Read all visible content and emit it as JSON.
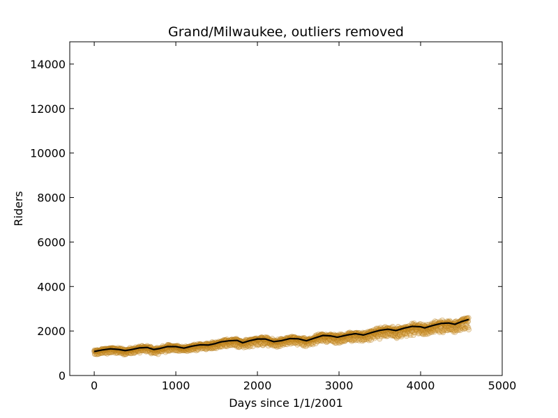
{
  "chart_data": {
    "type": "scatter",
    "title": "Grand/Milwaukee, outliers removed",
    "xlabel": "Days since 1/1/2001",
    "ylabel": "Riders",
    "xlim": [
      -300,
      5000
    ],
    "ylim": [
      0,
      15000
    ],
    "xticks": [
      0,
      1000,
      2000,
      3000,
      4000,
      5000
    ],
    "yticks": [
      0,
      2000,
      4000,
      6000,
      8000,
      10000,
      12000,
      14000
    ],
    "grid": false,
    "legend": "none",
    "series": [
      {
        "kind": "scatter-points",
        "color": "#e0a030",
        "edge_color": "#b07818",
        "x_range": [
          0,
          4590
        ],
        "note_density": "daily observations"
      },
      {
        "kind": "smoothed-trend-line",
        "color": "#000000",
        "points": [
          [
            0,
            1080
          ],
          [
            100,
            1150
          ],
          [
            200,
            1200
          ],
          [
            300,
            1170
          ],
          [
            380,
            1120
          ],
          [
            450,
            1160
          ],
          [
            550,
            1240
          ],
          [
            650,
            1260
          ],
          [
            730,
            1170
          ],
          [
            800,
            1210
          ],
          [
            900,
            1300
          ],
          [
            1000,
            1300
          ],
          [
            1100,
            1230
          ],
          [
            1200,
            1320
          ],
          [
            1300,
            1380
          ],
          [
            1400,
            1370
          ],
          [
            1480,
            1430
          ],
          [
            1550,
            1510
          ],
          [
            1650,
            1560
          ],
          [
            1750,
            1580
          ],
          [
            1820,
            1470
          ],
          [
            1900,
            1560
          ],
          [
            2000,
            1640
          ],
          [
            2100,
            1640
          ],
          [
            2200,
            1520
          ],
          [
            2300,
            1570
          ],
          [
            2400,
            1660
          ],
          [
            2500,
            1650
          ],
          [
            2600,
            1560
          ],
          [
            2700,
            1680
          ],
          [
            2800,
            1800
          ],
          [
            2900,
            1780
          ],
          [
            2980,
            1720
          ],
          [
            3100,
            1820
          ],
          [
            3200,
            1880
          ],
          [
            3300,
            1820
          ],
          [
            3400,
            1930
          ],
          [
            3500,
            2030
          ],
          [
            3600,
            2080
          ],
          [
            3700,
            2020
          ],
          [
            3800,
            2130
          ],
          [
            3900,
            2210
          ],
          [
            4000,
            2190
          ],
          [
            4050,
            2140
          ],
          [
            4150,
            2250
          ],
          [
            4250,
            2340
          ],
          [
            4350,
            2360
          ],
          [
            4420,
            2300
          ],
          [
            4500,
            2420
          ],
          [
            4590,
            2520
          ]
        ]
      }
    ]
  }
}
